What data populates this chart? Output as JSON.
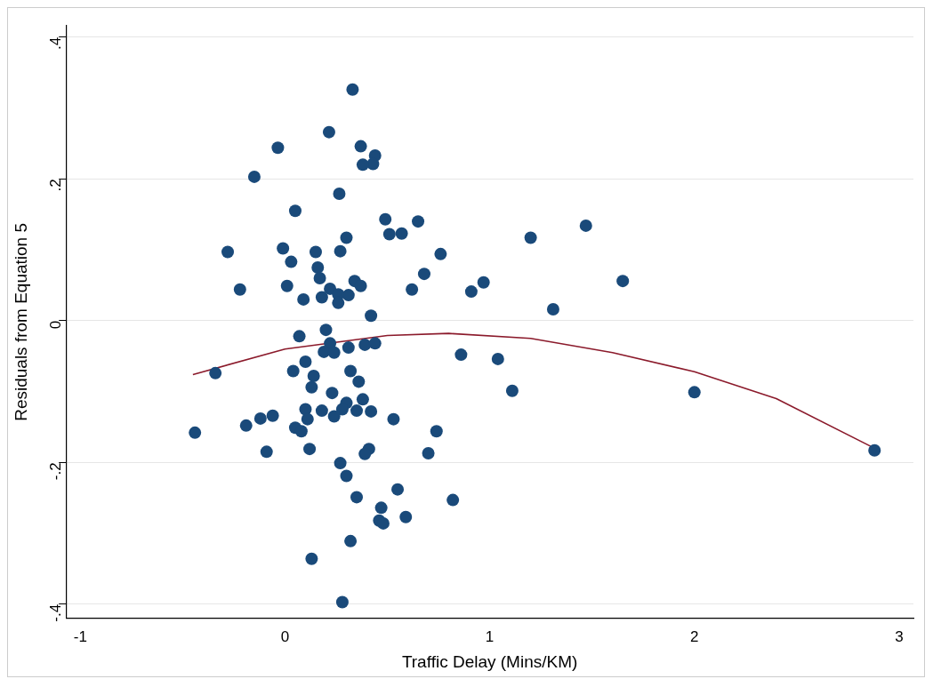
{
  "chart_data": {
    "type": "scatter",
    "xlabel": "Traffic Delay (Mins/KM)",
    "ylabel": "Residuals from Equation 5",
    "xlim": [
      -1.07,
      3.07
    ],
    "ylim": [
      -0.42,
      0.416
    ],
    "xticks": [
      -1,
      0,
      1,
      2,
      3
    ],
    "yticks": [
      {
        "value": -0.4,
        "label": "-.4"
      },
      {
        "value": -0.2,
        "label": "-.2"
      },
      0,
      {
        "value": 0.2,
        "label": ".2"
      },
      {
        "value": 0.4,
        "label": ".4"
      }
    ],
    "grid": "y",
    "legend": false,
    "marker": "circle",
    "series": [
      {
        "color": "#1a4a7a",
        "x": [
          0.33,
          0.215,
          -0.035,
          0.37,
          0.44,
          0.43,
          0.38,
          -0.15,
          0.265,
          0.05,
          0.49,
          0.65,
          0.51,
          0.57,
          0.3,
          0.27,
          -0.28,
          -0.01,
          0.03,
          0.15,
          0.16,
          0.17,
          0.22,
          0.26,
          0.34,
          0.37,
          0.31,
          0.26,
          0.01,
          -0.22,
          0.09,
          0.18,
          0.68,
          0.62,
          0.76,
          0.42,
          0.2,
          0.07,
          0.22,
          0.19,
          0.24,
          0.31,
          0.39,
          0.44,
          -0.34,
          0.1,
          0.04,
          0.14,
          0.13,
          0.32,
          0.36,
          0.23,
          0.38,
          0.3,
          0.35,
          0.28,
          0.24,
          0.18,
          0.1,
          0.11,
          0.05,
          0.08,
          0.42,
          0.53,
          -0.06,
          -0.12,
          -0.19,
          -0.44,
          0.74,
          -0.09,
          0.12,
          0.41,
          0.39,
          0.7,
          0.27,
          0.3,
          0.55,
          0.35,
          0.47,
          0.46,
          0.48,
          0.59,
          0.32,
          0.13,
          0.28,
          1.2,
          1.47,
          1.65,
          1.31,
          0.91,
          0.97,
          0.86,
          1.04,
          1.11,
          2.0,
          2.88,
          0.82
        ],
        "values": [
          0.326,
          0.266,
          0.244,
          0.246,
          0.233,
          0.221,
          0.22,
          0.203,
          0.179,
          0.155,
          0.143,
          0.14,
          0.122,
          0.123,
          0.117,
          0.098,
          0.097,
          0.102,
          0.083,
          0.097,
          0.075,
          0.06,
          0.045,
          0.037,
          0.056,
          0.049,
          0.036,
          0.025,
          0.049,
          0.044,
          0.03,
          0.033,
          0.066,
          0.044,
          0.094,
          0.007,
          -0.013,
          -0.022,
          -0.032,
          -0.044,
          -0.045,
          -0.038,
          -0.034,
          -0.032,
          -0.074,
          -0.058,
          -0.071,
          -0.078,
          -0.094,
          -0.071,
          -0.086,
          -0.102,
          -0.111,
          -0.116,
          -0.127,
          -0.125,
          -0.135,
          -0.127,
          -0.125,
          -0.139,
          -0.151,
          -0.156,
          -0.128,
          -0.139,
          -0.134,
          -0.138,
          -0.148,
          -0.158,
          -0.156,
          -0.185,
          -0.181,
          -0.181,
          -0.188,
          -0.187,
          -0.201,
          -0.219,
          -0.238,
          -0.249,
          -0.264,
          -0.282,
          -0.286,
          -0.277,
          -0.311,
          -0.336,
          -0.397,
          0.117,
          0.134,
          0.056,
          0.016,
          0.041,
          0.054,
          -0.048,
          -0.054,
          -0.099,
          -0.101,
          -0.183,
          -0.253
        ]
      },
      {
        "type": "line",
        "color": "#8b1a2b",
        "marker": "none",
        "x": [
          -0.45,
          0,
          0.5,
          0.8,
          1.2,
          1.6,
          2.0,
          2.4,
          2.88
        ],
        "values": [
          -0.076,
          -0.04,
          -0.021,
          -0.018,
          -0.025,
          -0.045,
          -0.072,
          -0.11,
          -0.18
        ]
      }
    ]
  }
}
